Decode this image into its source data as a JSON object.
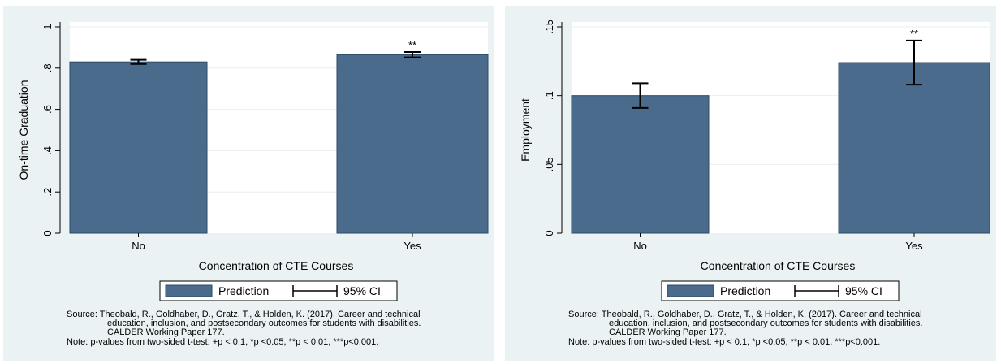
{
  "chart_data": [
    {
      "type": "bar",
      "categories": [
        "No",
        "Yes"
      ],
      "series": [
        {
          "name": "Prediction",
          "values": [
            0.83,
            0.865
          ]
        }
      ],
      "ci": [
        [
          0.82,
          0.84
        ],
        [
          0.852,
          0.878
        ]
      ],
      "significance": [
        "",
        "**"
      ],
      "ylabel": "On-time Graduation",
      "xlabel": "Concentration of CTE Courses",
      "ylim": [
        0,
        1
      ],
      "yticks": [
        0,
        0.2,
        0.4,
        0.6,
        0.8,
        1
      ],
      "ytick_labels": [
        "0",
        ".2",
        ".4",
        ".6",
        ".8",
        "1"
      ],
      "legend": [
        "Prediction",
        "95% CI"
      ],
      "legend_position": "bottom",
      "grid": true,
      "bar_color": "#4a6b8c",
      "source_lines": [
        "Source: Theobald, R., Goldhaber, D., Gratz, T., & Holden, K. (2017). Career and technical",
        "education, inclusion, and postsecondary outcomes for students with disabilities.",
        "CALDER Working Paper 177.",
        "Note: p-values from two-sided t-test: +p < 0.1, *p <0.05, **p < 0.01, ***p<0.001."
      ]
    },
    {
      "type": "bar",
      "categories": [
        "No",
        "Yes"
      ],
      "series": [
        {
          "name": "Prediction",
          "values": [
            0.1,
            0.124
          ]
        }
      ],
      "ci": [
        [
          0.091,
          0.109
        ],
        [
          0.108,
          0.14
        ]
      ],
      "significance": [
        "",
        "**"
      ],
      "ylabel": "Employment",
      "xlabel": "Concentration of CTE Courses",
      "ylim": [
        0,
        0.15
      ],
      "yticks": [
        0,
        0.05,
        0.1,
        0.15
      ],
      "ytick_labels": [
        "0",
        ".05",
        ".1",
        ".15"
      ],
      "legend": [
        "Prediction",
        "95% CI"
      ],
      "legend_position": "bottom",
      "grid": true,
      "bar_color": "#4a6b8c",
      "source_lines": [
        "Source: Theobald, R., Goldhaber, D., Gratz, T., & Holden, K. (2017). Career and technical",
        "education, inclusion, and postsecondary outcomes for students with disabilities.",
        "CALDER Working Paper 177.",
        "Note: p-values from two-sided t-test: +p < 0.1, *p <0.05, **p < 0.01, ***p<0.001."
      ]
    }
  ]
}
